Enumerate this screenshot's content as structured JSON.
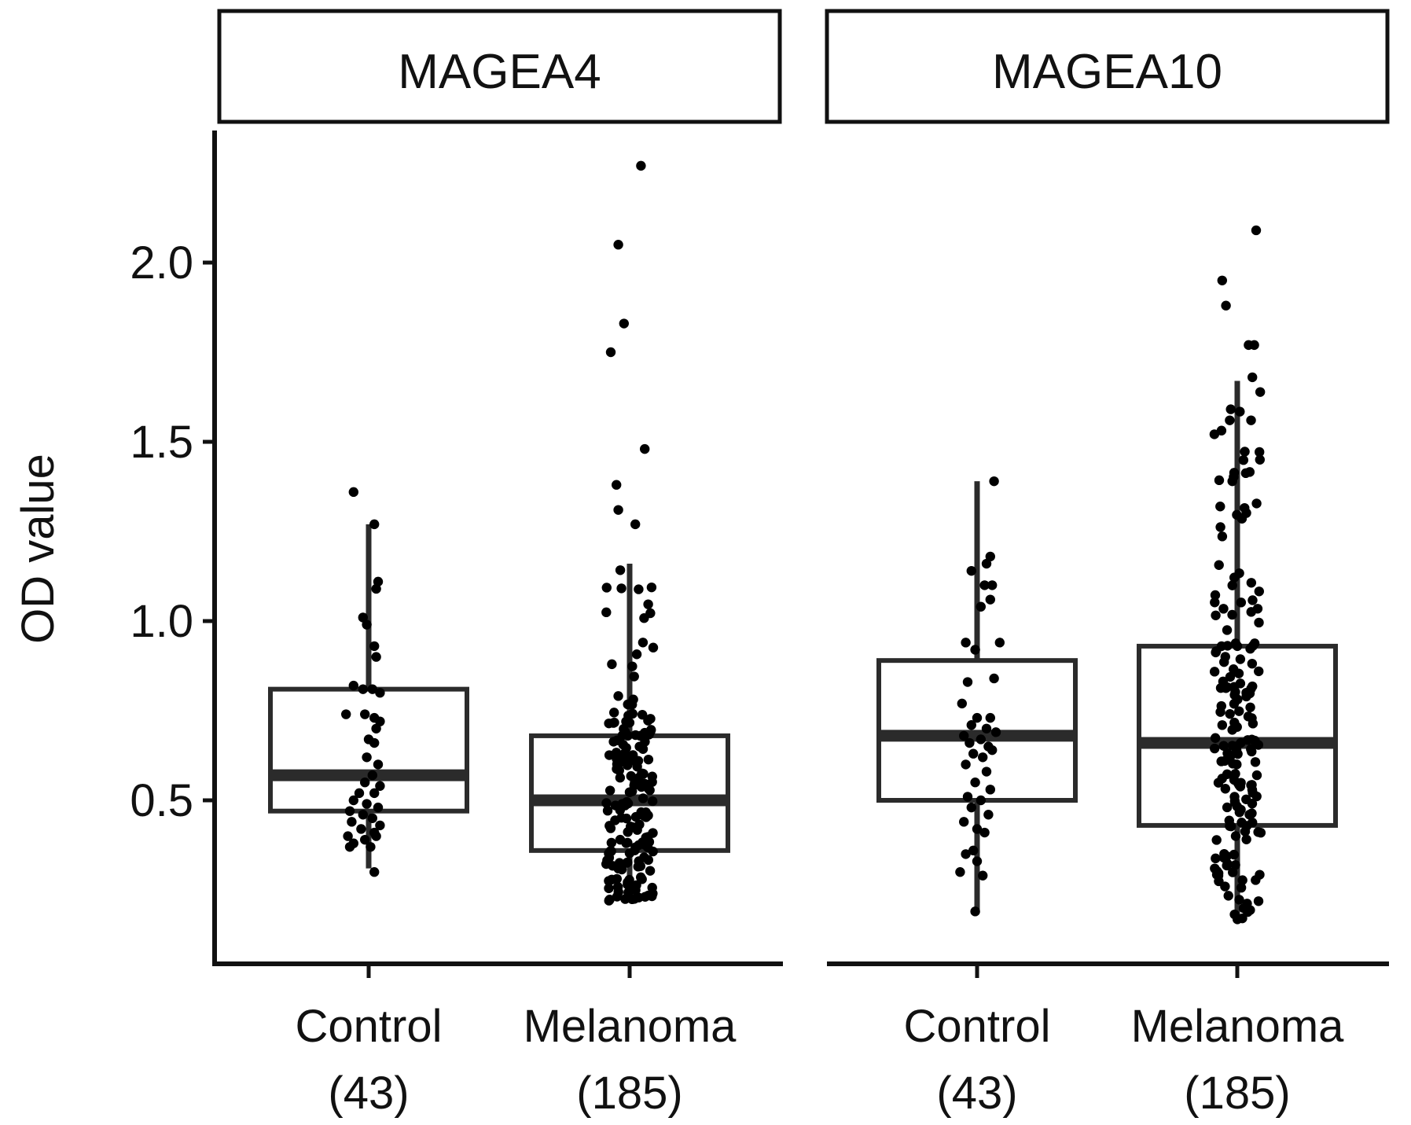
{
  "chart_data": {
    "type": "boxplot",
    "ylabel": "OD value",
    "y_ticks": [
      "0.5",
      "1.0",
      "1.5",
      "2.0"
    ],
    "ylim": [
      0.15,
      2.35
    ],
    "panels": [
      {
        "name": "MAGEA4",
        "groups": [
          {
            "label": "Control",
            "n_label": "(43)",
            "box": {
              "whisker_low": 0.31,
              "q1": 0.47,
              "median": 0.57,
              "q3": 0.81,
              "whisker_high": 1.27
            },
            "points": [
              [
                -0.08,
                1.36
              ],
              [
                0.03,
                1.27
              ],
              [
                0.05,
                1.11
              ],
              [
                0.04,
                1.09
              ],
              [
                -0.03,
                1.01
              ],
              [
                -0.01,
                0.99
              ],
              [
                0.03,
                0.93
              ],
              [
                0.04,
                0.9
              ],
              [
                -0.08,
                0.82
              ],
              [
                -0.03,
                0.81
              ],
              [
                0.02,
                0.81
              ],
              [
                0.06,
                0.8
              ],
              [
                -0.12,
                0.74
              ],
              [
                -0.02,
                0.74
              ],
              [
                0.03,
                0.73
              ],
              [
                0.06,
                0.72
              ],
              [
                0.04,
                0.7
              ],
              [
                0.0,
                0.67
              ],
              [
                0.03,
                0.66
              ],
              [
                -0.01,
                0.62
              ],
              [
                0.05,
                0.6
              ],
              [
                0.02,
                0.57
              ],
              [
                -0.02,
                0.55
              ],
              [
                0.06,
                0.54
              ],
              [
                -0.05,
                0.52
              ],
              [
                0.03,
                0.52
              ],
              [
                -0.08,
                0.5
              ],
              [
                -0.01,
                0.49
              ],
              [
                0.05,
                0.48
              ],
              [
                -0.1,
                0.47
              ],
              [
                -0.03,
                0.46
              ],
              [
                0.02,
                0.45
              ],
              [
                -0.09,
                0.44
              ],
              [
                0.06,
                0.43
              ],
              [
                -0.04,
                0.42
              ],
              [
                0.03,
                0.41
              ],
              [
                -0.11,
                0.4
              ],
              [
                -0.02,
                0.39
              ],
              [
                0.04,
                0.4
              ],
              [
                -0.08,
                0.38
              ],
              [
                0.01,
                0.37
              ],
              [
                -0.1,
                0.37
              ],
              [
                0.03,
                0.3
              ]
            ]
          },
          {
            "label": "Melanoma",
            "n_label": "(185)",
            "box": {
              "whisker_low": 0.22,
              "q1": 0.36,
              "median": 0.5,
              "q3": 0.68,
              "whisker_high": 1.16
            }
          }
        ]
      },
      {
        "name": "MAGEA10",
        "groups": [
          {
            "label": "Control",
            "n_label": "(43)",
            "box": {
              "whisker_low": 0.19,
              "q1": 0.5,
              "median": 0.68,
              "q3": 0.89,
              "whisker_high": 1.39
            },
            "points": [
              [
                0.09,
                1.39
              ],
              [
                0.07,
                1.18
              ],
              [
                0.05,
                1.16
              ],
              [
                -0.03,
                1.14
              ],
              [
                0.04,
                1.1
              ],
              [
                0.08,
                1.1
              ],
              [
                0.07,
                1.06
              ],
              [
                0.02,
                1.04
              ],
              [
                -0.06,
                0.94
              ],
              [
                0.12,
                0.94
              ],
              [
                -0.01,
                0.92
              ],
              [
                0.09,
                0.84
              ],
              [
                -0.05,
                0.83
              ],
              [
                -0.08,
                0.77
              ],
              [
                0.0,
                0.73
              ],
              [
                0.07,
                0.73
              ],
              [
                -0.03,
                0.71
              ],
              [
                0.05,
                0.7
              ],
              [
                0.1,
                0.69
              ],
              [
                -0.07,
                0.68
              ],
              [
                0.02,
                0.67
              ],
              [
                -0.04,
                0.66
              ],
              [
                0.06,
                0.65
              ],
              [
                0.08,
                0.64
              ],
              [
                -0.02,
                0.63
              ],
              [
                0.03,
                0.62
              ],
              [
                -0.06,
                0.6
              ],
              [
                0.05,
                0.58
              ],
              [
                -0.01,
                0.55
              ],
              [
                0.07,
                0.53
              ],
              [
                -0.05,
                0.51
              ],
              [
                0.02,
                0.5
              ],
              [
                -0.03,
                0.48
              ],
              [
                0.06,
                0.46
              ],
              [
                -0.07,
                0.44
              ],
              [
                0.0,
                0.42
              ],
              [
                0.04,
                0.41
              ],
              [
                -0.02,
                0.36
              ],
              [
                -0.06,
                0.35
              ],
              [
                0.0,
                0.33
              ],
              [
                -0.09,
                0.3
              ],
              [
                0.03,
                0.29
              ],
              [
                -0.01,
                0.19
              ]
            ]
          },
          {
            "label": "Melanoma",
            "n_label": "(185)",
            "box": {
              "whisker_low": 0.16,
              "q1": 0.43,
              "median": 0.66,
              "q3": 0.93,
              "whisker_high": 1.67
            }
          }
        ]
      }
    ]
  }
}
